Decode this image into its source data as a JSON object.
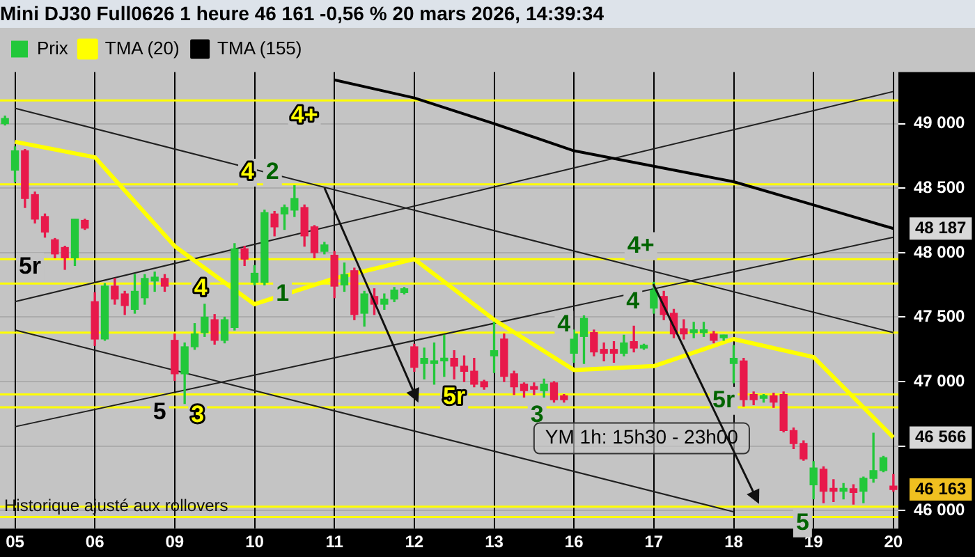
{
  "chart_data": {
    "type": "candlestick",
    "title": "Mini DJ30 Full0626 1 heure 46 161 -0,56 % 20 mars 2026, 14:39:34",
    "categories": [
      null,
      "05",
      null,
      null,
      null,
      null,
      null,
      null,
      null,
      "06",
      null,
      null,
      null,
      null,
      null,
      null,
      null,
      "09",
      null,
      null,
      null,
      null,
      null,
      null,
      null,
      "10",
      null,
      null,
      null,
      null,
      null,
      null,
      null,
      "11",
      null,
      null,
      null,
      null,
      null,
      null,
      null,
      "12",
      null,
      null,
      null,
      null,
      null,
      null,
      null,
      "13",
      null,
      null,
      null,
      null,
      null,
      null,
      null,
      "16",
      null,
      null,
      null,
      null,
      null,
      null,
      null,
      "17",
      null,
      null,
      null,
      null,
      null,
      null,
      null,
      "18",
      null,
      null,
      null,
      null,
      null,
      null,
      null,
      "19",
      null,
      null,
      null,
      null,
      null,
      null,
      null,
      "20"
    ],
    "ylim": [
      45860,
      49400
    ],
    "yticks": [
      {
        "value": 46000,
        "label": "46 000"
      },
      {
        "value": 46500,
        "label": null
      },
      {
        "value": 47000,
        "label": "47 000"
      },
      {
        "value": 47500,
        "label": "47 500"
      },
      {
        "value": 48000,
        "label": "48 000"
      },
      {
        "value": 48500,
        "label": "48 500"
      },
      {
        "value": 49000,
        "label": "49 000"
      }
    ],
    "grid": true,
    "legend": "top left",
    "marker": "none",
    "series": [
      {
        "name": "Prix",
        "ohlc": [
          [
            49000,
            49060,
            48990,
            49040
          ],
          [
            48640,
            48820,
            48550,
            48790
          ],
          [
            48790,
            48800,
            48350,
            48420
          ],
          [
            48450,
            48470,
            48230,
            48260
          ],
          [
            48280,
            48300,
            48120,
            48160
          ],
          [
            48100,
            48110,
            47960,
            47990
          ],
          [
            48040,
            48050,
            47870,
            47960
          ],
          [
            47960,
            48260,
            47900,
            48260
          ],
          [
            48250,
            48260,
            48180,
            48190
          ],
          [
            47620,
            47690,
            47280,
            47330
          ],
          [
            47330,
            47760,
            47320,
            47740
          ],
          [
            47740,
            47800,
            47600,
            47640
          ],
          [
            47680,
            47700,
            47520,
            47590
          ],
          [
            47560,
            47830,
            47530,
            47700
          ],
          [
            47650,
            47830,
            47600,
            47800
          ],
          [
            47780,
            47850,
            47700,
            47810
          ],
          [
            47800,
            47830,
            47700,
            47740
          ],
          [
            47320,
            47370,
            47010,
            47060
          ],
          [
            47060,
            47300,
            46830,
            47270
          ],
          [
            47270,
            47450,
            47250,
            47370
          ],
          [
            47380,
            47600,
            47350,
            47500
          ],
          [
            47480,
            47520,
            47290,
            47320
          ],
          [
            47320,
            47500,
            47300,
            47480
          ],
          [
            47420,
            48070,
            47400,
            48030
          ],
          [
            48030,
            48050,
            47900,
            47950
          ],
          [
            47770,
            47900,
            47750,
            47840
          ],
          [
            47770,
            48330,
            47750,
            48310
          ],
          [
            48300,
            48320,
            48130,
            48200
          ],
          [
            48300,
            48370,
            48180,
            48350
          ],
          [
            48330,
            48520,
            48280,
            48420
          ],
          [
            48350,
            48370,
            48050,
            48130
          ],
          [
            48200,
            48210,
            47960,
            48000
          ],
          [
            48010,
            48080,
            47990,
            48060
          ],
          [
            47980,
            48010,
            47650,
            47740
          ],
          [
            47750,
            47920,
            47700,
            47830
          ],
          [
            47860,
            47880,
            47480,
            47520
          ],
          [
            47530,
            47700,
            47430,
            47680
          ],
          [
            47660,
            47720,
            47520,
            47600
          ],
          [
            47600,
            47680,
            47560,
            47640
          ],
          [
            47640,
            47730,
            47620,
            47710
          ],
          [
            47690,
            47730,
            47680,
            47720
          ],
          [
            47270,
            47290,
            47080,
            47110
          ],
          [
            47140,
            47260,
            47020,
            47180
          ],
          [
            47140,
            47300,
            46980,
            47160
          ],
          [
            47160,
            47360,
            47040,
            47180
          ],
          [
            47180,
            47240,
            47020,
            47120
          ],
          [
            47120,
            47200,
            47000,
            47080
          ],
          [
            47080,
            47180,
            46960,
            46980
          ],
          [
            47000,
            47010,
            46940,
            46960
          ],
          [
            47200,
            47460,
            47070,
            47240
          ],
          [
            47330,
            47370,
            47000,
            47040
          ],
          [
            47060,
            47080,
            46900,
            46960
          ],
          [
            46980,
            46990,
            46880,
            46930
          ],
          [
            46960,
            46990,
            46900,
            46940
          ],
          [
            46930,
            47020,
            46880,
            46980
          ],
          [
            46990,
            47000,
            46840,
            46860
          ],
          [
            46890,
            46900,
            46840,
            46860
          ],
          [
            47220,
            47400,
            47150,
            47370
          ],
          [
            47350,
            47510,
            47140,
            47490
          ],
          [
            47380,
            47400,
            47200,
            47230
          ],
          [
            47250,
            47300,
            47160,
            47220
          ],
          [
            47250,
            47310,
            47150,
            47220
          ],
          [
            47220,
            47360,
            47200,
            47300
          ],
          [
            47310,
            47430,
            47230,
            47260
          ],
          [
            47260,
            47290,
            47250,
            47280
          ],
          [
            47570,
            47770,
            47530,
            47710
          ],
          [
            47660,
            47700,
            47480,
            47520
          ],
          [
            47530,
            47560,
            47340,
            47370
          ],
          [
            47410,
            47480,
            47330,
            47370
          ],
          [
            47380,
            47460,
            47340,
            47400
          ],
          [
            47380,
            47460,
            47350,
            47400
          ],
          [
            47370,
            47390,
            47300,
            47320
          ],
          [
            47340,
            47360,
            47320,
            47350
          ],
          [
            47140,
            47280,
            46990,
            47180
          ],
          [
            47160,
            47180,
            46810,
            46860
          ],
          [
            46900,
            46920,
            46820,
            46860
          ],
          [
            46870,
            46900,
            46840,
            46890
          ],
          [
            46890,
            46910,
            46800,
            46840
          ],
          [
            46900,
            46920,
            46610,
            46620
          ],
          [
            46620,
            46640,
            46480,
            46520
          ],
          [
            46520,
            46540,
            46390,
            46400
          ],
          [
            46200,
            46380,
            46090,
            46330
          ],
          [
            46320,
            46340,
            46060,
            46150
          ],
          [
            46170,
            46240,
            46070,
            46150
          ],
          [
            46150,
            46210,
            46090,
            46170
          ],
          [
            46170,
            46200,
            46050,
            46140
          ],
          [
            46150,
            46260,
            46060,
            46250
          ],
          [
            46250,
            46600,
            46220,
            46310
          ],
          [
            46310,
            46420,
            46300,
            46410
          ],
          [
            46190,
            46280,
            46150,
            46163
          ]
        ]
      },
      {
        "name": "TMA (20)",
        "type": "line",
        "color": "#ffff00",
        "x": [
          "05",
          "06",
          "09",
          "10",
          "11",
          "12",
          "13",
          "16",
          "17",
          "18",
          "19",
          "20"
        ],
        "values": [
          48860,
          48740,
          48050,
          47600,
          47800,
          47950,
          47480,
          47090,
          47120,
          47330,
          47190,
          46566
        ]
      },
      {
        "name": "TMA (155)",
        "type": "line",
        "color": "#000000",
        "x": [
          "11",
          "12",
          "13",
          "16",
          "17",
          "18",
          "19",
          "20"
        ],
        "values": [
          49340,
          49200,
          49000,
          48790,
          48670,
          48550,
          48370,
          48187
        ]
      },
      {
        "type": "line",
        "color": "#202020",
        "x": [
          "05",
          "20"
        ],
        "values": [
          49120,
          47380
        ]
      },
      {
        "type": "line",
        "color": "#202020",
        "x": [
          "05",
          "20"
        ],
        "values": [
          47620,
          49250
        ]
      },
      {
        "type": "line",
        "color": "#202020",
        "x": [
          "05",
          "18"
        ],
        "values": [
          47400,
          45990
        ]
      },
      {
        "type": "line",
        "color": "#202020",
        "x": [
          "05",
          "20"
        ],
        "values": [
          46650,
          48120
        ]
      }
    ],
    "ref_lines": [
      {
        "axis": "y",
        "value": 49180,
        "color": "#ffff00"
      },
      {
        "axis": "y",
        "value": 48530,
        "color": "#ffff00"
      },
      {
        "axis": "y",
        "value": 47950,
        "color": "#ffff00"
      },
      {
        "axis": "y",
        "value": 47760,
        "color": "#ffff00"
      },
      {
        "axis": "y",
        "value": 47380,
        "color": "#ffff00"
      },
      {
        "axis": "y",
        "value": 46900,
        "color": "#ffff00"
      },
      {
        "axis": "y",
        "value": 46800,
        "color": "#ffff00"
      },
      {
        "axis": "y",
        "value": 46030,
        "color": "#ffff00"
      },
      {
        "axis": "y",
        "value": 45950,
        "color": "#ffff00"
      }
    ],
    "annotations": [
      "4+",
      "4",
      "2",
      "5r",
      "4",
      "1",
      "5",
      "3",
      {
        "text": "5r",
        "y": 46880
      },
      "3",
      "4",
      "4+",
      "4",
      "5r",
      "5",
      "48 187",
      "46 566",
      "46 163",
      "YM 1h: 15h30 - 23h00",
      "Historique ajusté aux rollovers"
    ]
  }
}
